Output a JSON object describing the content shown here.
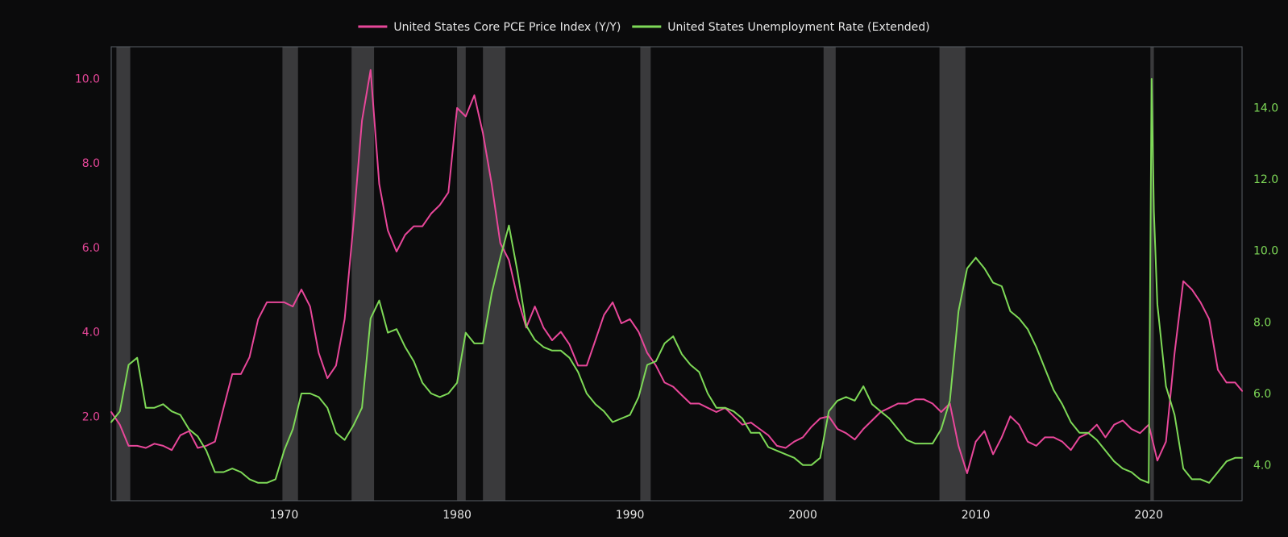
{
  "chart_data": {
    "type": "line",
    "title": "",
    "xlabel": "",
    "ylabel_left": "",
    "ylabel_right": "",
    "xlim": [
      1960.0,
      2025.4
    ],
    "ylim_left": [
      0.0,
      10.75
    ],
    "ylim_right": [
      3.0,
      15.7
    ],
    "grid": false,
    "legend_position": "top-center",
    "x_ticks": [
      1970,
      1980,
      1990,
      2000,
      2010,
      2020
    ],
    "y_ticks_left": [
      2.0,
      4.0,
      6.0,
      8.0,
      10.0
    ],
    "y_ticks_right": [
      4.0,
      6.0,
      8.0,
      10.0,
      12.0,
      14.0
    ],
    "recessions": [
      [
        1960.3,
        1961.1
      ],
      [
        1969.9,
        1970.8
      ],
      [
        1973.9,
        1975.2
      ],
      [
        1980.0,
        1980.5
      ],
      [
        1981.5,
        1982.8
      ],
      [
        1990.6,
        1991.2
      ],
      [
        2001.2,
        2001.9
      ],
      [
        2007.9,
        2009.4
      ],
      [
        2020.1,
        2020.3
      ]
    ],
    "background_color": "#0b0b0c",
    "plot_border_color": "#5a5f66",
    "recession_color": "#3a3a3c",
    "series": [
      {
        "name": "United States Core PCE Price Index (Y/Y)",
        "axis": "left",
        "color": "#e8479a",
        "x": [
          1960.0,
          1960.5,
          1961.0,
          1961.5,
          1962.0,
          1962.5,
          1963.0,
          1963.5,
          1964.0,
          1964.5,
          1965.0,
          1965.5,
          1966.0,
          1966.5,
          1967.0,
          1967.5,
          1968.0,
          1968.5,
          1969.0,
          1969.5,
          1970.0,
          1970.5,
          1971.0,
          1971.5,
          1972.0,
          1972.5,
          1973.0,
          1973.5,
          1974.0,
          1974.5,
          1975.0,
          1975.5,
          1976.0,
          1976.5,
          1977.0,
          1977.5,
          1978.0,
          1978.5,
          1979.0,
          1979.5,
          1980.0,
          1980.5,
          1981.0,
          1981.5,
          1982.0,
          1982.5,
          1983.0,
          1983.5,
          1984.0,
          1984.5,
          1985.0,
          1985.5,
          1986.0,
          1986.5,
          1987.0,
          1987.5,
          1988.0,
          1988.5,
          1989.0,
          1989.5,
          1990.0,
          1990.5,
          1991.0,
          1991.5,
          1992.0,
          1992.5,
          1993.0,
          1993.5,
          1994.0,
          1994.5,
          1995.0,
          1995.5,
          1996.0,
          1996.5,
          1997.0,
          1997.5,
          1998.0,
          1998.5,
          1999.0,
          1999.5,
          2000.0,
          2000.5,
          2001.0,
          2001.5,
          2002.0,
          2002.5,
          2003.0,
          2003.5,
          2004.0,
          2004.5,
          2005.0,
          2005.5,
          2006.0,
          2006.5,
          2007.0,
          2007.5,
          2008.0,
          2008.5,
          2009.0,
          2009.5,
          2010.0,
          2010.5,
          2011.0,
          2011.5,
          2012.0,
          2012.5,
          2013.0,
          2013.5,
          2014.0,
          2014.5,
          2015.0,
          2015.5,
          2016.0,
          2016.5,
          2017.0,
          2017.5,
          2018.0,
          2018.5,
          2019.0,
          2019.5,
          2020.0,
          2020.5,
          2021.0,
          2021.5,
          2022.0,
          2022.5,
          2023.0,
          2023.5,
          2024.0,
          2024.5,
          2025.0,
          2025.4
        ],
        "values": [
          2.1,
          1.8,
          1.3,
          1.3,
          1.25,
          1.35,
          1.3,
          1.2,
          1.55,
          1.65,
          1.25,
          1.3,
          1.4,
          2.2,
          3.0,
          3.0,
          3.4,
          4.3,
          4.7,
          4.7,
          4.7,
          4.6,
          5.0,
          4.6,
          3.5,
          2.9,
          3.2,
          4.3,
          6.5,
          9.0,
          10.2,
          7.5,
          6.4,
          5.9,
          6.3,
          6.5,
          6.5,
          6.8,
          7.0,
          7.3,
          9.3,
          9.1,
          9.6,
          8.7,
          7.5,
          6.1,
          5.7,
          4.8,
          4.1,
          4.6,
          4.1,
          3.8,
          4.0,
          3.7,
          3.2,
          3.2,
          3.8,
          4.4,
          4.7,
          4.2,
          4.3,
          4.0,
          3.5,
          3.2,
          2.8,
          2.7,
          2.5,
          2.3,
          2.3,
          2.2,
          2.1,
          2.2,
          2.0,
          1.8,
          1.85,
          1.7,
          1.55,
          1.3,
          1.25,
          1.4,
          1.5,
          1.75,
          1.95,
          2.0,
          1.7,
          1.6,
          1.45,
          1.7,
          1.9,
          2.1,
          2.2,
          2.3,
          2.3,
          2.4,
          2.4,
          2.3,
          2.1,
          2.3,
          1.3,
          0.65,
          1.4,
          1.65,
          1.1,
          1.5,
          2.0,
          1.8,
          1.4,
          1.3,
          1.5,
          1.5,
          1.4,
          1.2,
          1.5,
          1.6,
          1.8,
          1.5,
          1.8,
          1.9,
          1.7,
          1.6,
          1.8,
          0.95,
          1.4,
          3.5,
          5.2,
          5.0,
          4.7,
          4.3,
          3.1,
          2.8,
          2.8,
          2.6
        ]
      },
      {
        "name": "United States Unemployment Rate (Extended)",
        "axis": "right",
        "color": "#7ed957",
        "x": [
          1960.0,
          1960.5,
          1961.0,
          1961.5,
          1962.0,
          1962.5,
          1963.0,
          1963.5,
          1964.0,
          1964.5,
          1965.0,
          1965.5,
          1966.0,
          1966.5,
          1967.0,
          1967.5,
          1968.0,
          1968.5,
          1969.0,
          1969.5,
          1970.0,
          1970.5,
          1971.0,
          1971.5,
          1972.0,
          1972.5,
          1973.0,
          1973.5,
          1974.0,
          1974.5,
          1975.0,
          1975.5,
          1976.0,
          1976.5,
          1977.0,
          1977.5,
          1978.0,
          1978.5,
          1979.0,
          1979.5,
          1980.0,
          1980.5,
          1981.0,
          1981.5,
          1982.0,
          1982.5,
          1983.0,
          1983.5,
          1984.0,
          1984.5,
          1985.0,
          1985.5,
          1986.0,
          1986.5,
          1987.0,
          1987.5,
          1988.0,
          1988.5,
          1989.0,
          1989.5,
          1990.0,
          1990.5,
          1991.0,
          1991.5,
          1992.0,
          1992.5,
          1993.0,
          1993.5,
          1994.0,
          1994.5,
          1995.0,
          1995.5,
          1996.0,
          1996.5,
          1997.0,
          1997.5,
          1998.0,
          1998.5,
          1999.0,
          1999.5,
          2000.0,
          2000.5,
          2001.0,
          2001.5,
          2002.0,
          2002.5,
          2003.0,
          2003.5,
          2004.0,
          2004.5,
          2005.0,
          2005.5,
          2006.0,
          2006.5,
          2007.0,
          2007.5,
          2008.0,
          2008.5,
          2009.0,
          2009.5,
          2010.0,
          2010.5,
          2011.0,
          2011.5,
          2012.0,
          2012.5,
          2013.0,
          2013.5,
          2014.0,
          2014.5,
          2015.0,
          2015.5,
          2016.0,
          2016.5,
          2017.0,
          2017.5,
          2018.0,
          2018.5,
          2019.0,
          2019.5,
          2020.0,
          2020.17,
          2020.3,
          2020.5,
          2021.0,
          2021.5,
          2022.0,
          2022.5,
          2023.0,
          2023.5,
          2024.0,
          2024.5,
          2025.0,
          2025.4
        ],
        "values": [
          5.2,
          5.5,
          6.8,
          7.0,
          5.6,
          5.6,
          5.7,
          5.5,
          5.4,
          5.0,
          4.8,
          4.4,
          3.8,
          3.8,
          3.9,
          3.8,
          3.6,
          3.5,
          3.5,
          3.6,
          4.4,
          5.0,
          6.0,
          6.0,
          5.9,
          5.6,
          4.9,
          4.7,
          5.1,
          5.6,
          8.1,
          8.6,
          7.7,
          7.8,
          7.3,
          6.9,
          6.3,
          6.0,
          5.9,
          6.0,
          6.3,
          7.7,
          7.4,
          7.4,
          8.8,
          9.8,
          10.7,
          9.4,
          7.9,
          7.5,
          7.3,
          7.2,
          7.2,
          7.0,
          6.6,
          6.0,
          5.7,
          5.5,
          5.2,
          5.3,
          5.4,
          5.9,
          6.8,
          6.9,
          7.4,
          7.6,
          7.1,
          6.8,
          6.6,
          6.0,
          5.6,
          5.6,
          5.5,
          5.3,
          4.9,
          4.9,
          4.5,
          4.4,
          4.3,
          4.2,
          4.0,
          4.0,
          4.2,
          5.5,
          5.8,
          5.9,
          5.8,
          6.2,
          5.7,
          5.5,
          5.3,
          5.0,
          4.7,
          4.6,
          4.6,
          4.6,
          5.0,
          5.8,
          8.3,
          9.5,
          9.8,
          9.5,
          9.1,
          9.0,
          8.3,
          8.1,
          7.8,
          7.3,
          6.7,
          6.1,
          5.7,
          5.2,
          4.9,
          4.9,
          4.7,
          4.4,
          4.1,
          3.9,
          3.8,
          3.6,
          3.5,
          14.8,
          11.1,
          8.5,
          6.2,
          5.4,
          3.9,
          3.6,
          3.6,
          3.5,
          3.8,
          4.1,
          4.2,
          4.2
        ]
      }
    ]
  }
}
